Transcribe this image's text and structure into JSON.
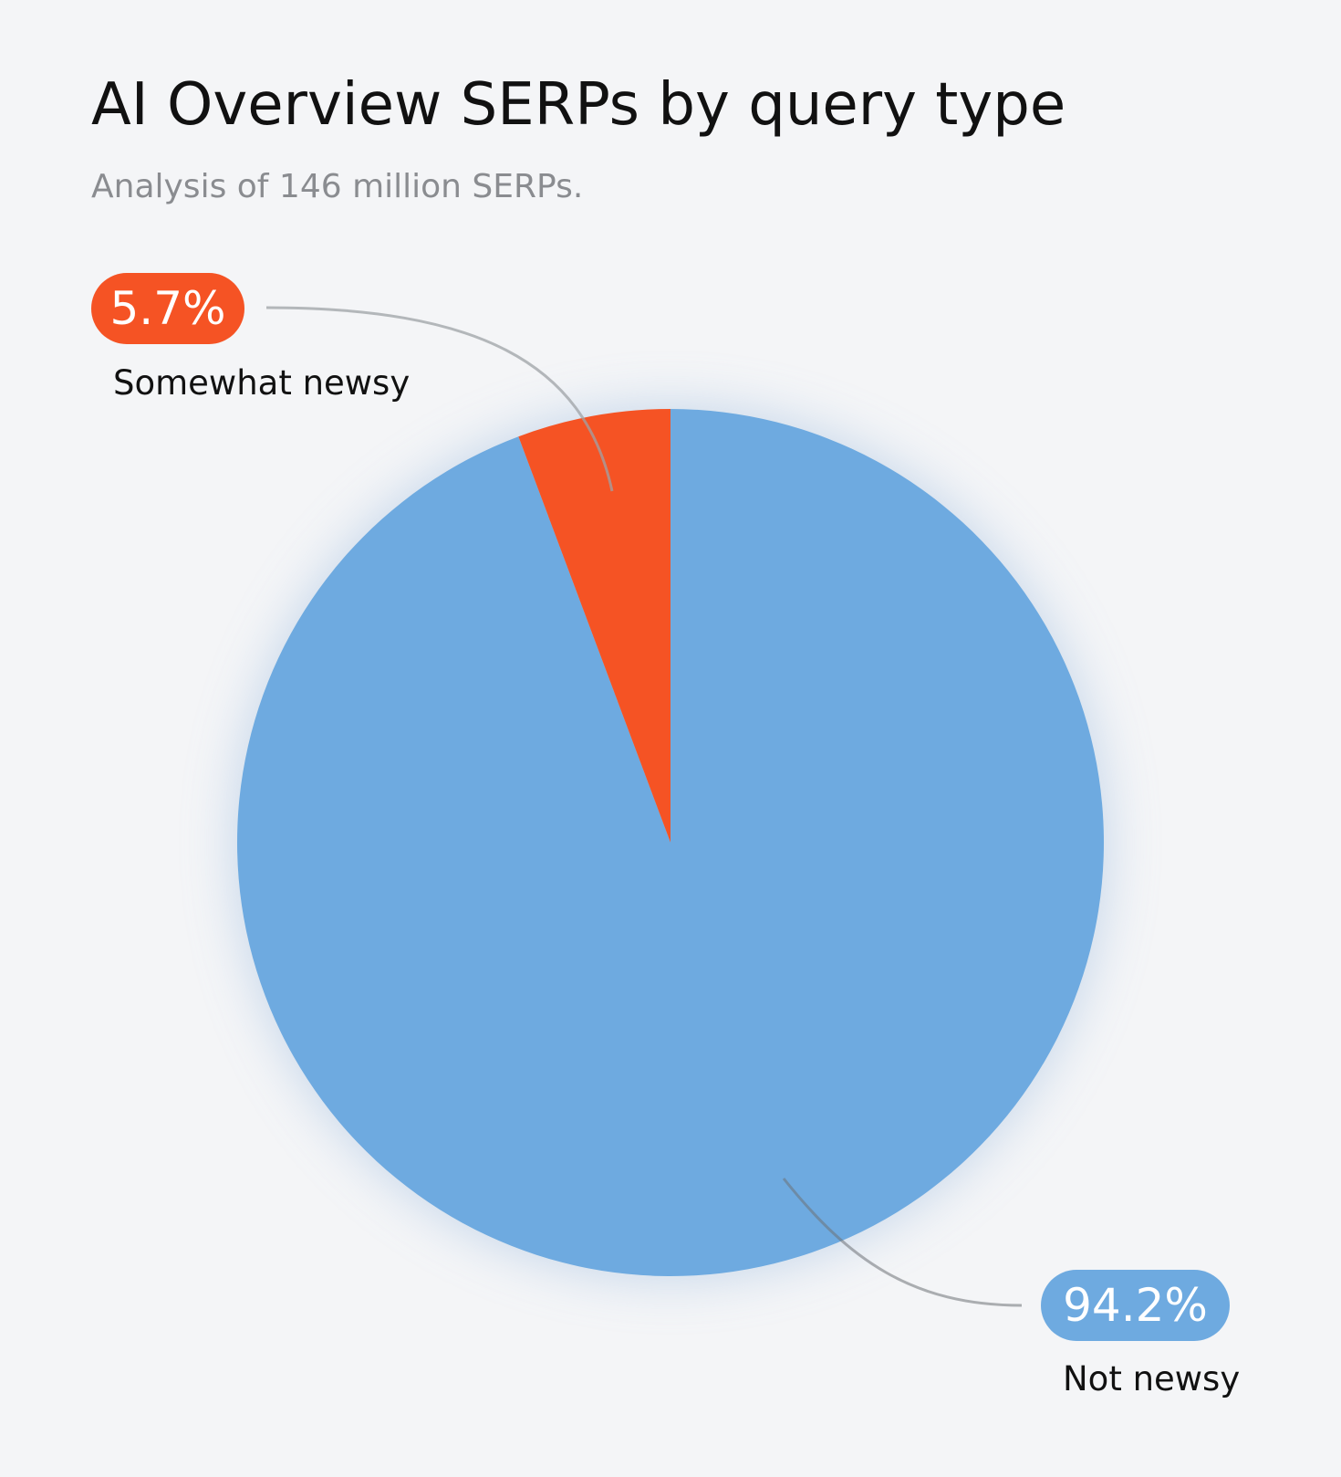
{
  "chart_data": {
    "type": "pie",
    "title": "AI Overview SERPs by query type",
    "subtitle": "Analysis of 146 million SERPs.",
    "slices": [
      {
        "label": "Not newsy",
        "value": 94.2,
        "display": "94.2%",
        "color": "#6eaae0"
      },
      {
        "label": "Somewhat newsy",
        "value": 5.7,
        "display": "5.7%",
        "color": "#f55324"
      }
    ]
  },
  "colors": {
    "background": "#f4f5f7",
    "leader_line": "#b5b7ba"
  }
}
